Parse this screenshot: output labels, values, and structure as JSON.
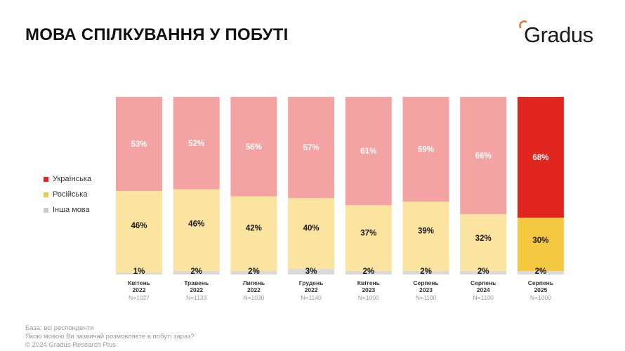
{
  "header": {
    "title": "МОВА СПІЛКУВАННЯ У ПОБУТІ",
    "logo_text": "Gradus",
    "logo_color": "#e8702a"
  },
  "legend": [
    {
      "label": "Українська",
      "color": "#e0261f"
    },
    {
      "label": "Російська",
      "color": "#f5c842"
    },
    {
      "label": "Інша мова",
      "color": "#cccccc"
    }
  ],
  "chart_data": {
    "type": "bar",
    "stacked": true,
    "categories": [
      {
        "line1": "Квітень",
        "line2": "2022",
        "n": "N=1027"
      },
      {
        "line1": "Травень",
        "line2": "2022",
        "n": "N=1133"
      },
      {
        "line1": "Липень",
        "line2": "2022",
        "n": "N=1030"
      },
      {
        "line1": "Грудень",
        "line2": "2022",
        "n": "N=1140"
      },
      {
        "line1": "Квітень",
        "line2": "2023",
        "n": "N=1000"
      },
      {
        "line1": "Серпень",
        "line2": "2023",
        "n": "N=1100"
      },
      {
        "line1": "Серпень",
        "line2": "2024",
        "n": "N=1100"
      },
      {
        "line1": "Серпень",
        "line2": "2025",
        "n": "N=1000"
      }
    ],
    "series": [
      {
        "name": "Українська",
        "values": [
          53,
          52,
          56,
          57,
          61,
          59,
          66,
          68
        ]
      },
      {
        "name": "Російська",
        "values": [
          46,
          46,
          42,
          40,
          37,
          39,
          32,
          30
        ]
      },
      {
        "name": "Інша мова",
        "values": [
          1,
          2,
          2,
          3,
          2,
          2,
          2,
          2
        ]
      }
    ],
    "value_labels": {
      "Українська": [
        "53%",
        "52%",
        "56%",
        "57%",
        "61%",
        "59%",
        "66%",
        "68%"
      ],
      "Російська": [
        "46%",
        "46%",
        "42%",
        "40%",
        "37%",
        "39%",
        "32%",
        "30%"
      ],
      "Інша мова": [
        "1%",
        "2%",
        "2%",
        "3%",
        "2%",
        "2%",
        "2%",
        "2%"
      ]
    },
    "colors": {
      "muted": [
        "#f4a3a3",
        "#fbe3a0",
        "#d9d9d9"
      ],
      "highlight": [
        "#e0261f",
        "#f5c842",
        "#d9d9d9"
      ]
    },
    "highlight_index": 7,
    "ylim": [
      0,
      100
    ],
    "legend_position": "left"
  },
  "footer": {
    "base": "База: всі респонденти",
    "question": "Якою мовою Ви зазвичай розмовляєте в побуті зараз?",
    "copyright": "© 2024 Gradus Research Plus"
  }
}
